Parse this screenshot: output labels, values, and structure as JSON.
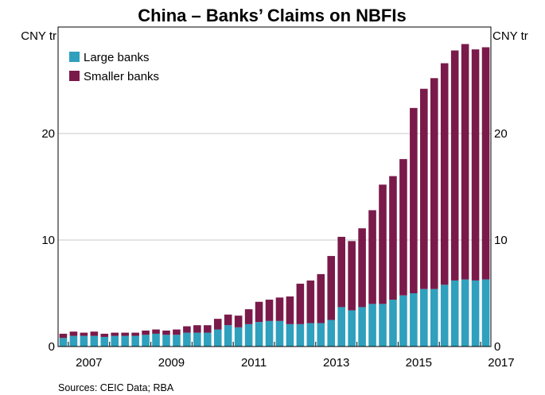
{
  "chart_data": {
    "type": "bar",
    "stacked": true,
    "title": "China – Banks’ Claims on NBFIs",
    "y_unit_left": "CNY tr",
    "y_unit_right": "CNY tr",
    "ylim": [
      0,
      30
    ],
    "yticks": [
      0,
      10,
      20
    ],
    "x_ticks": [
      "2007",
      "2009",
      "2011",
      "2013",
      "2015",
      "2017"
    ],
    "grid": true,
    "legend_position": "top-left",
    "source": "Sources:   CEIC Data; RBA",
    "series": [
      {
        "name": "Large banks",
        "color": "#2fa0bd",
        "values": [
          0.8,
          1.0,
          1.0,
          1.0,
          0.9,
          1.0,
          1.0,
          1.0,
          1.1,
          1.2,
          1.1,
          1.1,
          1.3,
          1.3,
          1.3,
          1.6,
          2.0,
          1.8,
          2.1,
          2.3,
          2.4,
          2.4,
          2.1,
          2.1,
          2.2,
          2.2,
          2.5,
          3.7,
          3.4,
          3.7,
          4.0,
          4.0,
          4.4,
          4.8,
          5.0,
          5.4,
          5.4,
          5.8,
          6.2,
          6.3,
          6.2,
          6.3
        ]
      },
      {
        "name": "Smaller banks",
        "color": "#7a1a4a",
        "values": [
          0.4,
          0.4,
          0.3,
          0.4,
          0.3,
          0.3,
          0.3,
          0.3,
          0.4,
          0.4,
          0.4,
          0.5,
          0.6,
          0.7,
          0.7,
          1.0,
          1.0,
          1.1,
          1.4,
          1.9,
          2.0,
          2.2,
          2.6,
          3.8,
          4.0,
          4.6,
          6.0,
          6.6,
          6.5,
          7.4,
          8.8,
          11.2,
          11.6,
          12.8,
          17.4,
          18.8,
          19.8,
          20.8,
          21.6,
          22.1,
          21.7,
          21.8
        ]
      }
    ]
  }
}
